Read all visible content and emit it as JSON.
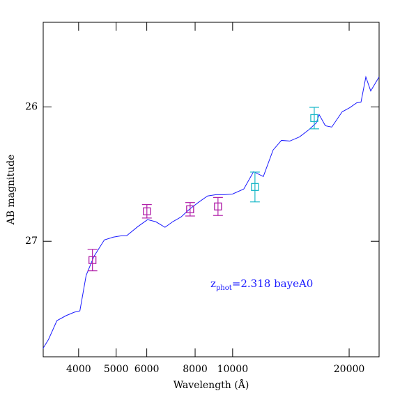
{
  "chart_data": {
    "type": "line",
    "xlabel": "Wavelength (Å)",
    "ylabel": "AB magnitude",
    "annotation": {
      "text": "z",
      "sub": "phot",
      "rest": "=2.318 bayeA0",
      "color": "#1a1aff"
    },
    "xscale": "log",
    "xlim": [
      3240,
      23900
    ],
    "xticks": [
      4000,
      5000,
      6000,
      8000,
      10000,
      20000
    ],
    "ylim": [
      27.86,
      25.37
    ],
    "yticks": [
      26,
      27
    ],
    "model": {
      "color": "#1a1aff",
      "x": [
        3236,
        3344,
        3515,
        3710,
        3899,
        4030,
        4183,
        4379,
        4661,
        4919,
        5170,
        5323,
        5688,
        6028,
        6335,
        6687,
        6998,
        7357,
        7731,
        8162,
        8613,
        9052,
        9514,
        10000,
        10686,
        11326,
        12003,
        12720,
        13370,
        14050,
        14890,
        15720,
        16450,
        16730,
        17360,
        18030,
        19190,
        20080,
        20930,
        21460,
        22090,
        22740,
        23890
      ],
      "values": [
        27.798,
        27.731,
        27.591,
        27.554,
        27.528,
        27.518,
        27.254,
        27.114,
        26.99,
        26.969,
        26.959,
        26.959,
        26.891,
        26.839,
        26.855,
        26.896,
        26.855,
        26.819,
        26.762,
        26.71,
        26.663,
        26.653,
        26.653,
        26.648,
        26.611,
        26.482,
        26.518,
        26.321,
        26.249,
        26.254,
        26.223,
        26.171,
        26.119,
        26.057,
        26.14,
        26.15,
        26.036,
        26.005,
        25.969,
        25.964,
        25.777,
        25.881,
        25.777
      ]
    },
    "points": [
      {
        "color": "#b01ea8",
        "x": [
          4343,
          6004,
          7765,
          9166
        ],
        "values": [
          27.14,
          26.777,
          26.762,
          26.741
        ],
        "errors": [
          0.08,
          0.05,
          0.05,
          0.067
        ]
      },
      {
        "color": "#1ab8c8",
        "x": [
          11420,
          16250
        ],
        "values": [
          26.596,
          26.083
        ],
        "errors": [
          0.111,
          0.08
        ]
      }
    ]
  }
}
